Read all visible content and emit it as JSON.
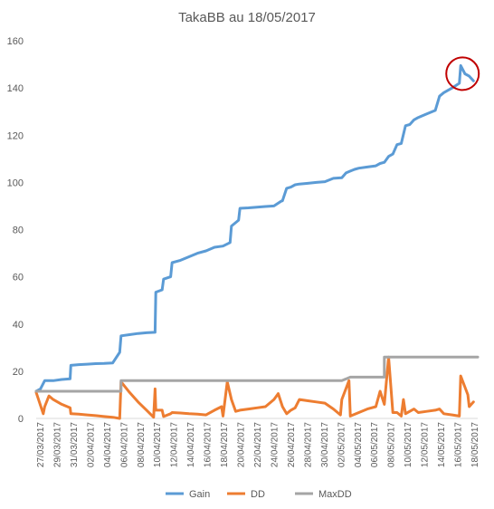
{
  "chart_data": {
    "type": "line",
    "title": "TakaBB au 18/05/2017",
    "xlabel": "",
    "ylabel": "",
    "ylim": [
      0,
      160
    ],
    "yticks": [
      0,
      20,
      40,
      60,
      80,
      100,
      120,
      140,
      160
    ],
    "x_tick_labels": [
      "27/03/2017",
      "29/03/2017",
      "31/03/2017",
      "02/04/2017",
      "04/04/2017",
      "06/04/2017",
      "08/04/2017",
      "10/04/2017",
      "12/04/2017",
      "14/04/2017",
      "16/04/2017",
      "18/04/2017",
      "20/04/2017",
      "22/04/2017",
      "24/04/2017",
      "26/04/2017",
      "28/04/2017",
      "30/04/2017",
      "02/05/2017",
      "04/05/2017",
      "06/05/2017",
      "08/05/2017",
      "10/05/2017",
      "12/05/2017",
      "14/05/2017",
      "16/05/2017",
      "18/05/2017"
    ],
    "xlim": [
      "2017-03-27",
      "2017-05-18"
    ],
    "grid": false,
    "legend": "bottom",
    "highlight": {
      "type": "circle",
      "around": "last Gain peak"
    },
    "series": [
      {
        "name": "Gain",
        "color": "#5B9BD5",
        "points": [
          [
            "2017-03-27",
            11.5
          ],
          [
            "2017-03-27T12",
            12.5
          ],
          [
            "2017-03-28",
            16
          ],
          [
            "2017-03-29",
            16
          ],
          [
            "2017-03-30",
            16.5
          ],
          [
            "2017-03-31",
            16.8
          ],
          [
            "2017-03-31T02",
            22.5
          ],
          [
            "2017-04-01",
            22.8
          ],
          [
            "2017-04-02",
            23
          ],
          [
            "2017-04-03",
            23.2
          ],
          [
            "2017-04-04",
            23.3
          ],
          [
            "2017-04-05",
            23.5
          ],
          [
            "2017-04-05T20",
            28
          ],
          [
            "2017-04-06",
            35
          ],
          [
            "2017-04-07",
            35.5
          ],
          [
            "2017-04-08",
            36
          ],
          [
            "2017-04-09",
            36.3
          ],
          [
            "2017-04-10",
            36.5
          ],
          [
            "2017-04-10T02",
            53.5
          ],
          [
            "2017-04-10T20",
            54.5
          ],
          [
            "2017-04-11",
            59
          ],
          [
            "2017-04-11T20",
            60
          ],
          [
            "2017-04-12",
            66
          ],
          [
            "2017-04-13",
            67
          ],
          [
            "2017-04-14",
            68.5
          ],
          [
            "2017-04-15",
            70
          ],
          [
            "2017-04-16",
            71
          ],
          [
            "2017-04-17",
            72.5
          ],
          [
            "2017-04-18",
            73
          ],
          [
            "2017-04-18T20",
            74.5
          ],
          [
            "2017-04-19",
            81.5
          ],
          [
            "2017-04-19T20",
            84
          ],
          [
            "2017-04-20",
            89
          ],
          [
            "2017-04-21",
            89.2
          ],
          [
            "2017-04-22",
            89.5
          ],
          [
            "2017-04-23",
            89.8
          ],
          [
            "2017-04-24",
            90
          ],
          [
            "2017-04-24T20",
            92
          ],
          [
            "2017-04-25",
            92.2
          ],
          [
            "2017-04-25T12",
            97.5
          ],
          [
            "2017-04-26",
            98
          ],
          [
            "2017-04-26T12",
            99
          ],
          [
            "2017-04-27",
            99.3
          ],
          [
            "2017-04-28",
            99.6
          ],
          [
            "2017-04-29",
            100
          ],
          [
            "2017-04-30",
            100.3
          ],
          [
            "2017-04-30T20",
            101.5
          ],
          [
            "2017-05-01",
            101.7
          ],
          [
            "2017-05-02",
            102
          ],
          [
            "2017-05-02T12",
            104
          ],
          [
            "2017-05-03",
            104.8
          ],
          [
            "2017-05-03T12",
            105.5
          ],
          [
            "2017-05-04",
            106
          ],
          [
            "2017-05-05",
            106.5
          ],
          [
            "2017-05-06",
            107
          ],
          [
            "2017-05-06T12",
            108
          ],
          [
            "2017-05-07",
            108.5
          ],
          [
            "2017-05-07T12",
            111
          ],
          [
            "2017-05-08",
            112
          ],
          [
            "2017-05-08T12",
            116
          ],
          [
            "2017-05-09",
            116.5
          ],
          [
            "2017-05-09T12",
            124
          ],
          [
            "2017-05-10",
            124.5
          ],
          [
            "2017-05-10T12",
            126.5
          ],
          [
            "2017-05-11",
            127.5
          ],
          [
            "2017-05-12",
            129
          ],
          [
            "2017-05-13",
            130.5
          ],
          [
            "2017-05-13T12",
            136.5
          ],
          [
            "2017-05-14",
            138
          ],
          [
            "2017-05-15",
            140
          ],
          [
            "2017-05-15T20",
            142
          ],
          [
            "2017-05-16",
            149.5
          ],
          [
            "2017-05-16T12",
            146
          ],
          [
            "2017-05-17",
            145
          ],
          [
            "2017-05-17T12",
            143
          ]
        ]
      },
      {
        "name": "DD",
        "color": "#ED7D31",
        "points": [
          [
            "2017-03-27",
            11
          ],
          [
            "2017-03-27T20",
            2
          ],
          [
            "2017-03-28",
            5
          ],
          [
            "2017-03-28T12",
            9.5
          ],
          [
            "2017-03-29",
            8
          ],
          [
            "2017-03-30",
            6
          ],
          [
            "2017-03-31",
            4.5
          ],
          [
            "2017-03-31T02",
            2
          ],
          [
            "2017-04-01",
            1.8
          ],
          [
            "2017-04-02",
            1.5
          ],
          [
            "2017-04-03",
            1.2
          ],
          [
            "2017-04-04",
            0.8
          ],
          [
            "2017-04-05",
            0.5
          ],
          [
            "2017-04-05T20",
            0
          ],
          [
            "2017-04-06",
            15.5
          ],
          [
            "2017-04-07",
            11
          ],
          [
            "2017-04-08",
            7
          ],
          [
            "2017-04-09",
            3.5
          ],
          [
            "2017-04-09T20",
            0.5
          ],
          [
            "2017-04-10",
            12.5
          ],
          [
            "2017-04-10T02",
            3.5
          ],
          [
            "2017-04-10T20",
            3.5
          ],
          [
            "2017-04-11",
            0.8
          ],
          [
            "2017-04-11T20",
            2
          ],
          [
            "2017-04-12",
            2.5
          ],
          [
            "2017-04-13",
            2.3
          ],
          [
            "2017-04-14",
            2
          ],
          [
            "2017-04-15",
            1.8
          ],
          [
            "2017-04-16",
            1.5
          ],
          [
            "2017-04-17",
            3.5
          ],
          [
            "2017-04-17T20",
            5
          ],
          [
            "2017-04-18",
            1
          ],
          [
            "2017-04-18T12",
            15.5
          ],
          [
            "2017-04-19",
            8
          ],
          [
            "2017-04-19T12",
            3
          ],
          [
            "2017-04-20",
            3.5
          ],
          [
            "2017-04-21",
            4
          ],
          [
            "2017-04-22",
            4.5
          ],
          [
            "2017-04-23",
            5
          ],
          [
            "2017-04-24",
            8
          ],
          [
            "2017-04-24T12",
            10.5
          ],
          [
            "2017-04-25",
            5
          ],
          [
            "2017-04-25T12",
            2
          ],
          [
            "2017-04-26",
            3.5
          ],
          [
            "2017-04-26T12",
            4.5
          ],
          [
            "2017-04-27",
            8
          ],
          [
            "2017-04-28",
            7.5
          ],
          [
            "2017-04-29",
            7
          ],
          [
            "2017-04-30",
            6.5
          ],
          [
            "2017-05-01",
            4
          ],
          [
            "2017-05-01T20",
            1.5
          ],
          [
            "2017-05-02",
            8
          ],
          [
            "2017-05-02T20",
            16
          ],
          [
            "2017-05-03",
            1
          ],
          [
            "2017-05-04",
            2.5
          ],
          [
            "2017-05-05",
            4
          ],
          [
            "2017-05-06",
            5
          ],
          [
            "2017-05-06T12",
            11.5
          ],
          [
            "2017-05-07",
            6
          ],
          [
            "2017-05-07T12",
            26
          ],
          [
            "2017-05-08",
            2.5
          ],
          [
            "2017-05-08T12",
            2.5
          ],
          [
            "2017-05-09",
            1
          ],
          [
            "2017-05-09T06",
            8
          ],
          [
            "2017-05-09T12",
            2
          ],
          [
            "2017-05-10",
            3
          ],
          [
            "2017-05-10T12",
            4
          ],
          [
            "2017-05-11",
            2.5
          ],
          [
            "2017-05-12",
            3
          ],
          [
            "2017-05-13",
            3.5
          ],
          [
            "2017-05-13T12",
            4
          ],
          [
            "2017-05-14",
            2
          ],
          [
            "2017-05-15",
            1.5
          ],
          [
            "2017-05-15T20",
            1
          ],
          [
            "2017-05-16",
            18
          ],
          [
            "2017-05-16T20",
            10
          ],
          [
            "2017-05-17",
            5
          ],
          [
            "2017-05-17T12",
            7
          ]
        ]
      },
      {
        "name": "MaxDD",
        "color": "#A5A5A5",
        "points": [
          [
            "2017-03-27",
            11.5
          ],
          [
            "2017-04-06",
            11.5
          ],
          [
            "2017-04-06",
            16
          ],
          [
            "2017-05-02",
            16
          ],
          [
            "2017-05-03",
            17.5
          ],
          [
            "2017-05-07",
            17.5
          ],
          [
            "2017-05-07",
            26
          ],
          [
            "2017-05-18",
            26
          ]
        ]
      }
    ]
  }
}
